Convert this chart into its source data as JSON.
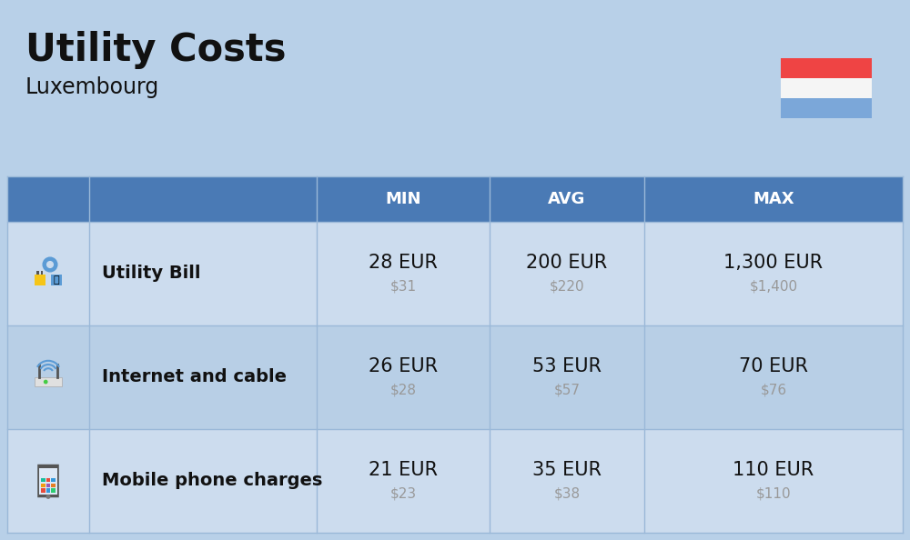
{
  "title": "Utility Costs",
  "subtitle": "Luxembourg",
  "background_color": "#b8d0e8",
  "header_bg_color": "#4a7ab5",
  "header_text_color": "#ffffff",
  "row_bg_color_light": "#ccdcee",
  "row_bg_color_dark": "#b8cfe6",
  "col_headers": [
    "MIN",
    "AVG",
    "MAX"
  ],
  "rows": [
    {
      "label": "Utility Bill",
      "min_eur": "28 EUR",
      "min_usd": "$31",
      "avg_eur": "200 EUR",
      "avg_usd": "$220",
      "max_eur": "1,300 EUR",
      "max_usd": "$1,400"
    },
    {
      "label": "Internet and cable",
      "min_eur": "26 EUR",
      "min_usd": "$28",
      "avg_eur": "53 EUR",
      "avg_usd": "$57",
      "max_eur": "70 EUR",
      "max_usd": "$76"
    },
    {
      "label": "Mobile phone charges",
      "min_eur": "21 EUR",
      "min_usd": "$23",
      "avg_eur": "35 EUR",
      "avg_usd": "$38",
      "max_eur": "110 EUR",
      "max_usd": "$110"
    }
  ],
  "flag_red": "#ef4444",
  "flag_white": "#f5f5f5",
  "flag_blue": "#7ba7d9",
  "text_dark": "#111111",
  "text_gray": "#999999",
  "divider_color": "#9ab8d8",
  "cell_eur_fontsize": 15,
  "cell_usd_fontsize": 11,
  "label_fontsize": 14,
  "header_fontsize": 13
}
